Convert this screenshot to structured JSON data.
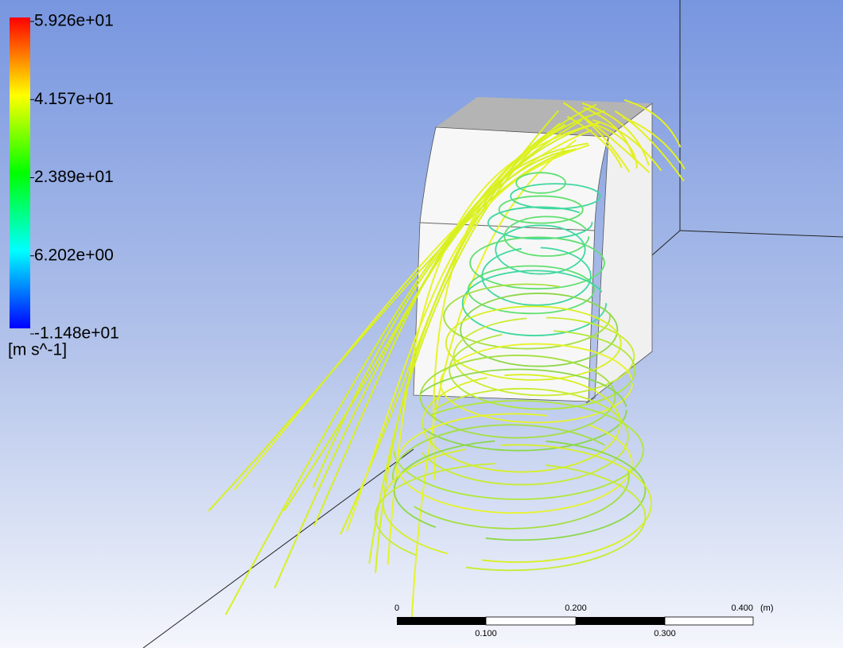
{
  "legend": {
    "ticks": [
      "5.926e+01",
      "4.157e+01",
      "2.389e+01",
      "6.202e+00",
      "-1.148e+01"
    ],
    "unit": "[m s^-1]"
  },
  "scale_bar": {
    "top_labels": [
      "0",
      "0.200",
      "0.400"
    ],
    "unit": "(m)",
    "bottom_labels": [
      "0.100",
      "0.300"
    ]
  }
}
